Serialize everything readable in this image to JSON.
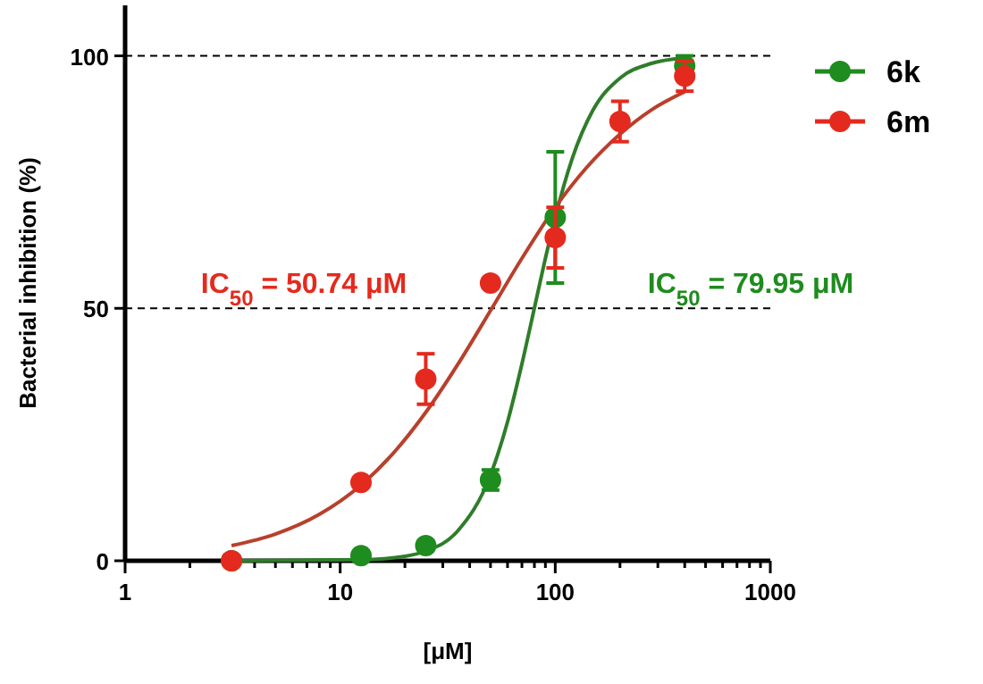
{
  "chart_data": {
    "type": "scatter",
    "xlabel": "[μM]",
    "ylabel": "Bacterial inhibition (%)",
    "log": "x",
    "xlim": [
      1,
      1000
    ],
    "ylim": [
      0,
      110
    ],
    "xticks": [
      1,
      {
        "value": 2,
        "label": null
      },
      {
        "value": 3,
        "label": null
      },
      {
        "value": 4,
        "label": null
      },
      {
        "value": 5,
        "label": null
      },
      {
        "value": 6,
        "label": null
      },
      {
        "value": 7,
        "label": null
      },
      {
        "value": 8,
        "label": null
      },
      {
        "value": 9,
        "label": null
      },
      10,
      {
        "value": 20,
        "label": null
      },
      {
        "value": 30,
        "label": null
      },
      {
        "value": 40,
        "label": null
      },
      {
        "value": 50,
        "label": null
      },
      {
        "value": 60,
        "label": null
      },
      {
        "value": 70,
        "label": null
      },
      {
        "value": 80,
        "label": null
      },
      {
        "value": 90,
        "label": null
      },
      100,
      {
        "value": 200,
        "label": null
      },
      {
        "value": 300,
        "label": null
      },
      {
        "value": 400,
        "label": null
      },
      {
        "value": 500,
        "label": null
      },
      {
        "value": 600,
        "label": null
      },
      {
        "value": 700,
        "label": null
      },
      {
        "value": 800,
        "label": null
      },
      {
        "value": 900,
        "label": null
      },
      1000
    ],
    "yticks": [
      0,
      50,
      100
    ],
    "grid": false,
    "legend": "top right",
    "marker": "circle",
    "ref_lines": [
      {
        "axis": "y",
        "value": 50,
        "color": "#000000",
        "line_style": "dashed"
      },
      {
        "axis": "y",
        "value": 100,
        "color": "#000000",
        "line_style": "dashed"
      }
    ],
    "annotations": [
      "IC$_{50}$ = 79.95 μM",
      "IC$_{50}$ = 50.74 μM"
    ],
    "series": [
      {
        "name": "6k",
        "color": "#1e8c1e",
        "x": [
          3.125,
          12.5,
          25,
          50,
          100,
          400
        ],
        "values": [
          0,
          1,
          3,
          16,
          68,
          98
        ],
        "errors": [
          null,
          null,
          null,
          2,
          13,
          2
        ]
      },
      {
        "name": "6m",
        "color": "#e42a1e",
        "x": [
          3.125,
          12.5,
          25,
          50,
          100,
          200,
          400
        ],
        "values": [
          0,
          15.5,
          36,
          55,
          64,
          87,
          96
        ],
        "errors": [
          null,
          null,
          5,
          null,
          6,
          4,
          3
        ]
      },
      {
        "type": "line",
        "color": "#2e7d2a",
        "line_style": "solid",
        "marker": "none",
        "x": [
          3.125,
          12.5,
          20,
          25,
          35,
          50,
          60,
          70,
          79.95,
          90,
          100,
          120,
          150,
          200,
          280,
          400
        ],
        "values": [
          0,
          0.2,
          0.9,
          1.9,
          5.8,
          17,
          27.5,
          39,
          50,
          59.9,
          68,
          79.7,
          89.3,
          95.6,
          98.5,
          99.6
        ]
      },
      {
        "type": "line",
        "color": "#b8402c",
        "line_style": "solid",
        "marker": "none",
        "x": [
          3.125,
          5,
          8,
          12.5,
          18,
          25,
          35,
          50.74,
          70,
          100,
          140,
          200,
          280,
          400
        ],
        "values": [
          3,
          5.3,
          9.2,
          15,
          21.7,
          29.4,
          38.7,
          50,
          59.9,
          70,
          77.9,
          84.5,
          89.3,
          92.9
        ]
      }
    ]
  }
}
